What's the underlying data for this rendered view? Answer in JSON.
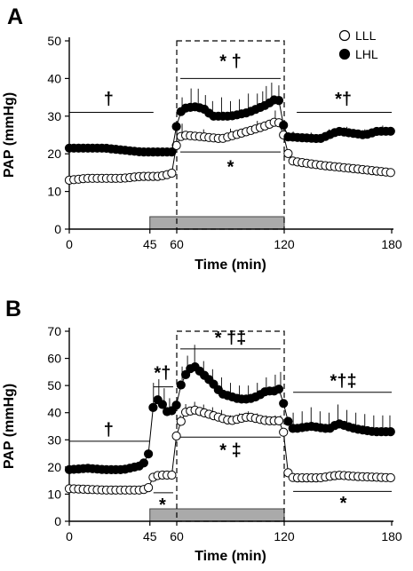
{
  "chart_data": [
    {
      "panel": "A",
      "type": "line",
      "xlabel": "Time (min)",
      "ylabel": "PAP (mmHg)",
      "xlim": [
        0,
        180
      ],
      "ylim": [
        0,
        50
      ],
      "xticks": [
        0,
        45,
        60,
        120,
        180
      ],
      "yticks": [
        0,
        10,
        20,
        30,
        40,
        50
      ],
      "legend": {
        "placement": "top-right",
        "entries": [
          {
            "label": "LLL",
            "marker": "open-circle"
          },
          {
            "label": "LHL",
            "marker": "filled-circle"
          }
        ]
      },
      "shaded_interval": [
        45,
        120
      ],
      "dashed_box": {
        "x": [
          60,
          120
        ],
        "y": [
          0,
          50
        ]
      },
      "series": [
        {
          "name": "LLL",
          "marker": "open",
          "keyframes": [
            [
              0,
              13
            ],
            [
              10,
              13.5
            ],
            [
              20,
              13.5
            ],
            [
              30,
              13.5
            ],
            [
              40,
              14
            ],
            [
              50,
              14
            ],
            [
              55,
              14.5
            ],
            [
              58,
              15
            ],
            [
              60,
              23
            ],
            [
              63,
              25
            ],
            [
              75,
              24.5
            ],
            [
              85,
              24
            ],
            [
              100,
              26
            ],
            [
              110,
              27.5
            ],
            [
              115,
              28.5
            ],
            [
              119,
              28
            ],
            [
              120,
              23
            ],
            [
              123,
              19
            ],
            [
              125,
              18
            ],
            [
              140,
              17
            ],
            [
              160,
              16
            ],
            [
              180,
              15
            ]
          ],
          "errors": [
            [
              60,
              3
            ],
            [
              63,
              3
            ],
            [
              75,
              2
            ],
            [
              90,
              2
            ],
            [
              105,
              2
            ],
            [
              115,
              3
            ]
          ]
        },
        {
          "name": "LHL",
          "marker": "filled",
          "keyframes": [
            [
              0,
              21.5
            ],
            [
              20,
              21.5
            ],
            [
              40,
              20.5
            ],
            [
              58,
              20.5
            ],
            [
              60,
              28
            ],
            [
              63,
              32
            ],
            [
              70,
              32.5
            ],
            [
              75,
              32
            ],
            [
              80,
              30
            ],
            [
              90,
              30
            ],
            [
              100,
              31
            ],
            [
              110,
              33
            ],
            [
              115,
              34.5
            ],
            [
              118,
              34
            ],
            [
              120,
              26
            ],
            [
              122,
              24.5
            ],
            [
              140,
              24
            ],
            [
              150,
              26
            ],
            [
              165,
              25
            ],
            [
              172,
              26
            ],
            [
              180,
              26
            ]
          ],
          "errors": [
            [
              63,
              3
            ],
            [
              68,
              5
            ],
            [
              72,
              5
            ],
            [
              76,
              4
            ],
            [
              80,
              4
            ],
            [
              85,
              5
            ],
            [
              90,
              4
            ],
            [
              95,
              4
            ],
            [
              100,
              5
            ],
            [
              105,
              4
            ],
            [
              108,
              4
            ],
            [
              110,
              5
            ],
            [
              113,
              5
            ],
            [
              117,
              4
            ],
            [
              125,
              1.5
            ],
            [
              135,
              1.5
            ],
            [
              145,
              1.5
            ],
            [
              155,
              1.5
            ],
            [
              165,
              1.5
            ],
            [
              175,
              1.5
            ]
          ]
        }
      ],
      "annotations": [
        {
          "text": "†",
          "line": [
            0,
            47,
            31
          ],
          "pos": [
            22,
            33
          ]
        },
        {
          "text": "* †",
          "line": [
            62,
            118,
            40
          ],
          "pos": [
            90,
            43
          ]
        },
        {
          "text": "*",
          "line": [
            62,
            118,
            20.5
          ],
          "pos": [
            90,
            15
          ]
        },
        {
          "text": "*†",
          "line": [
            127,
            180,
            31
          ],
          "pos": [
            153,
            33
          ]
        }
      ]
    },
    {
      "panel": "B",
      "type": "line",
      "xlabel": "Time (min)",
      "ylabel": "PAP (mmHg)",
      "xlim": [
        0,
        180
      ],
      "ylim": [
        0,
        70
      ],
      "xticks": [
        0,
        45,
        60,
        120,
        180
      ],
      "yticks": [
        0,
        10,
        20,
        30,
        40,
        50,
        60,
        70
      ],
      "shaded_interval": [
        45,
        120
      ],
      "dashed_box": {
        "x": [
          60,
          120
        ],
        "y": [
          0,
          70
        ]
      },
      "series": [
        {
          "name": "LLL",
          "marker": "open",
          "keyframes": [
            [
              0,
              12
            ],
            [
              20,
              11.5
            ],
            [
              40,
              11.5
            ],
            [
              44,
              12
            ],
            [
              46,
              16
            ],
            [
              50,
              17
            ],
            [
              58,
              17
            ],
            [
              60,
              33
            ],
            [
              62,
              36
            ],
            [
              64,
              40
            ],
            [
              70,
              41
            ],
            [
              80,
              39
            ],
            [
              90,
              37
            ],
            [
              100,
              38.5
            ],
            [
              110,
              37
            ],
            [
              119,
              37
            ],
            [
              120,
              30
            ],
            [
              122,
              18
            ],
            [
              125,
              16
            ],
            [
              140,
              16
            ],
            [
              150,
              17
            ],
            [
              160,
              16.5
            ],
            [
              180,
              16
            ]
          ],
          "errors": [
            [
              62,
              3
            ],
            [
              65,
              3
            ],
            [
              70,
              3
            ],
            [
              75,
              3
            ],
            [
              80,
              3
            ],
            [
              85,
              3
            ],
            [
              90,
              2
            ],
            [
              95,
              2
            ],
            [
              100,
              2
            ],
            [
              105,
              2
            ],
            [
              110,
              2
            ],
            [
              115,
              2
            ],
            [
              118,
              2
            ]
          ]
        },
        {
          "name": "LHL",
          "marker": "filled",
          "keyframes": [
            [
              0,
              19
            ],
            [
              10,
              19.5
            ],
            [
              20,
              19
            ],
            [
              30,
              19
            ],
            [
              40,
              20.5
            ],
            [
              44,
              23
            ],
            [
              45,
              32
            ],
            [
              47,
              43
            ],
            [
              49,
              45
            ],
            [
              52,
              43
            ],
            [
              55,
              40
            ],
            [
              58,
              41
            ],
            [
              60,
              43
            ],
            [
              63,
              52
            ],
            [
              67,
              56
            ],
            [
              70,
              57
            ],
            [
              75,
              54
            ],
            [
              80,
              51
            ],
            [
              85,
              47
            ],
            [
              90,
              46
            ],
            [
              95,
              45
            ],
            [
              100,
              45
            ],
            [
              105,
              46
            ],
            [
              110,
              48
            ],
            [
              115,
              48
            ],
            [
              118,
              49
            ],
            [
              120,
              42
            ],
            [
              122,
              37
            ],
            [
              125,
              34
            ],
            [
              135,
              35
            ],
            [
              145,
              34
            ],
            [
              150,
              36
            ],
            [
              160,
              34
            ],
            [
              170,
              33
            ],
            [
              180,
              33
            ]
          ],
          "errors": [
            [
              47,
              8
            ],
            [
              50,
              8
            ],
            [
              53,
              7
            ],
            [
              56,
              5
            ],
            [
              63,
              5
            ],
            [
              66,
              6
            ],
            [
              70,
              8
            ],
            [
              75,
              5
            ],
            [
              80,
              5
            ],
            [
              85,
              6
            ],
            [
              90,
              5
            ],
            [
              95,
              5
            ],
            [
              100,
              5
            ],
            [
              105,
              5
            ],
            [
              110,
              5
            ],
            [
              115,
              6
            ],
            [
              118,
              6
            ],
            [
              125,
              6
            ],
            [
              130,
              6
            ],
            [
              135,
              7
            ],
            [
              140,
              6
            ],
            [
              145,
              6
            ],
            [
              150,
              7
            ],
            [
              155,
              6
            ],
            [
              160,
              6
            ],
            [
              165,
              6
            ],
            [
              170,
              6
            ],
            [
              175,
              6
            ],
            [
              179,
              6
            ]
          ]
        }
      ],
      "annotations": [
        {
          "text": "†",
          "line": [
            0,
            45,
            29.5
          ],
          "pos": [
            22,
            31.5
          ]
        },
        {
          "text": "*†",
          "line": [
            47,
            58,
            49.5
          ],
          "pos": [
            52,
            52.5
          ]
        },
        {
          "text": "*",
          "line": [
            47,
            58,
            10.5
          ],
          "pos": [
            52,
            4
          ]
        },
        {
          "text": "*  †‡",
          "line": [
            62,
            118,
            63.5
          ],
          "pos": [
            90,
            65.5
          ]
        },
        {
          "text": "* ‡",
          "line": [
            62,
            118,
            31
          ],
          "pos": [
            90,
            24
          ]
        },
        {
          "text": "*†‡",
          "line": [
            125,
            180,
            47.5
          ],
          "pos": [
            153,
            49.5
          ]
        },
        {
          "text": "*",
          "line": [
            125,
            180,
            11
          ],
          "pos": [
            153,
            4.5
          ]
        }
      ]
    }
  ]
}
